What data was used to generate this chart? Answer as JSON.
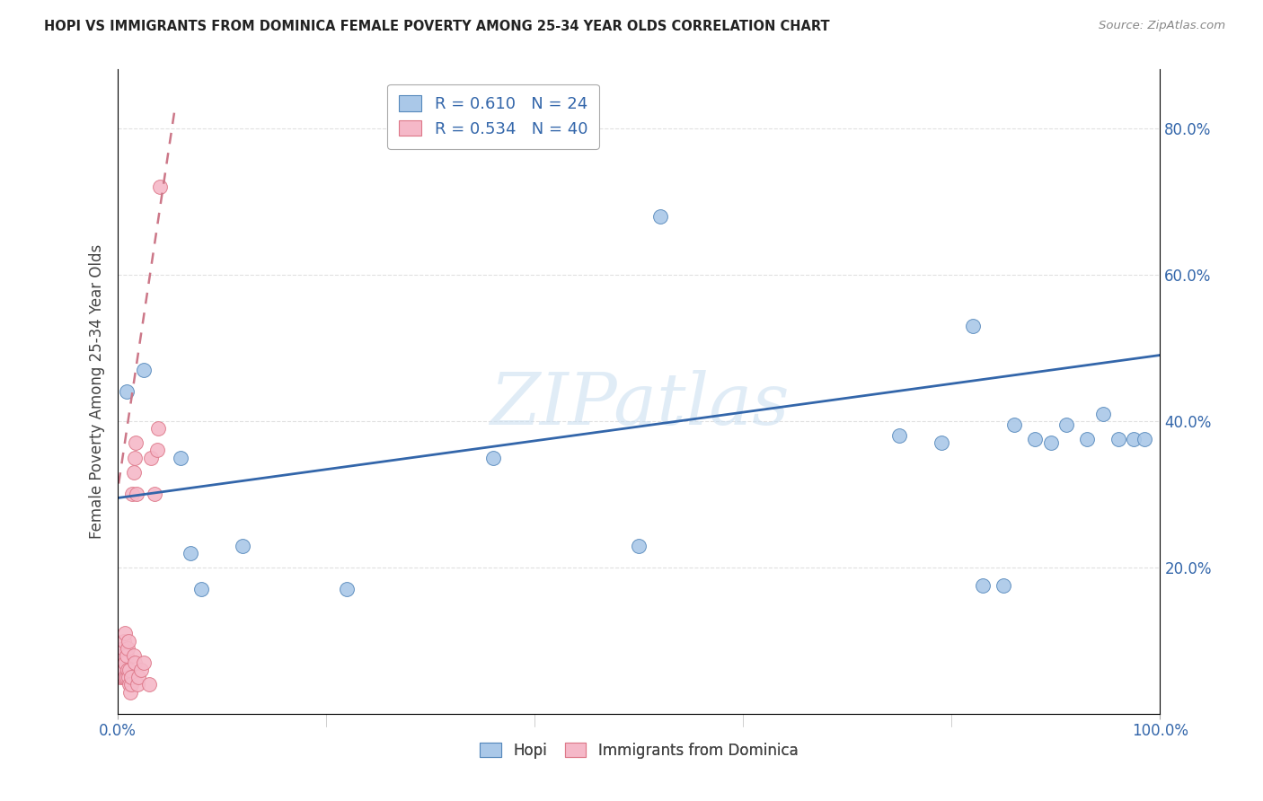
{
  "title": "HOPI VS IMMIGRANTS FROM DOMINICA FEMALE POVERTY AMONG 25-34 YEAR OLDS CORRELATION CHART",
  "source": "Source: ZipAtlas.com",
  "ylabel": "Female Poverty Among 25-34 Year Olds",
  "xlim": [
    0.0,
    1.0
  ],
  "ylim": [
    0.0,
    0.88
  ],
  "xticks": [
    0.0,
    1.0
  ],
  "xticklabels": [
    "0.0%",
    "100.0%"
  ],
  "yticks": [
    0.2,
    0.4,
    0.6,
    0.8
  ],
  "yticklabels": [
    "20.0%",
    "40.0%",
    "60.0%",
    "80.0%"
  ],
  "legend1_label": "R = 0.610   N = 24",
  "legend2_label": "R = 0.534   N = 40",
  "legend_xlabel": [
    "Hopi",
    "Immigrants from Dominica"
  ],
  "hopi_color": "#aac8e8",
  "hopi_edge_color": "#5588bb",
  "dominica_color": "#f5b8c8",
  "dominica_edge_color": "#dd7788",
  "trendline_hopi_color": "#3366aa",
  "trendline_dominica_color": "#cc7788",
  "watermark_text": "ZIPatlas",
  "hopi_scatter_x": [
    0.008,
    0.025,
    0.06,
    0.07,
    0.08,
    0.12,
    0.22,
    0.36,
    0.5,
    0.52,
    0.75,
    0.79,
    0.82,
    0.83,
    0.85,
    0.86,
    0.88,
    0.895,
    0.91,
    0.93,
    0.945,
    0.96,
    0.975,
    0.985
  ],
  "hopi_scatter_y": [
    0.44,
    0.47,
    0.35,
    0.22,
    0.17,
    0.23,
    0.17,
    0.35,
    0.23,
    0.68,
    0.38,
    0.37,
    0.53,
    0.175,
    0.175,
    0.395,
    0.375,
    0.37,
    0.395,
    0.375,
    0.41,
    0.375,
    0.375,
    0.375
  ],
  "dominica_scatter_x": [
    0.002,
    0.003,
    0.003,
    0.004,
    0.004,
    0.005,
    0.005,
    0.006,
    0.006,
    0.007,
    0.007,
    0.007,
    0.008,
    0.008,
    0.009,
    0.009,
    0.01,
    0.01,
    0.011,
    0.011,
    0.012,
    0.013,
    0.013,
    0.014,
    0.015,
    0.015,
    0.016,
    0.016,
    0.017,
    0.018,
    0.019,
    0.02,
    0.022,
    0.025,
    0.03,
    0.032,
    0.035,
    0.038,
    0.039,
    0.04
  ],
  "dominica_scatter_y": [
    0.05,
    0.06,
    0.07,
    0.06,
    0.08,
    0.05,
    0.09,
    0.06,
    0.1,
    0.05,
    0.07,
    0.11,
    0.05,
    0.08,
    0.06,
    0.09,
    0.05,
    0.1,
    0.06,
    0.04,
    0.03,
    0.04,
    0.05,
    0.3,
    0.33,
    0.08,
    0.35,
    0.07,
    0.37,
    0.3,
    0.04,
    0.05,
    0.06,
    0.07,
    0.04,
    0.35,
    0.3,
    0.36,
    0.39,
    0.72
  ],
  "hopi_trend_x": [
    0.0,
    1.0
  ],
  "hopi_trend_y": [
    0.295,
    0.49
  ],
  "dominica_trend_x": [
    -0.005,
    0.055
  ],
  "dominica_trend_y": [
    0.26,
    0.83
  ],
  "background_color": "#ffffff",
  "grid_color": "#e0e0e0"
}
